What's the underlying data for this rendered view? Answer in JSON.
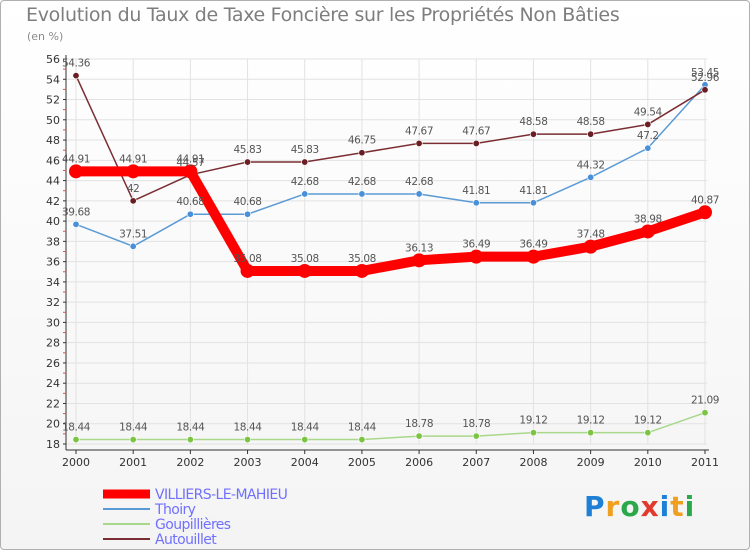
{
  "header": {
    "title": "Evolution du Taux de Taxe Foncière sur les Propriétés Non Bâties",
    "unit": "(en %)"
  },
  "logo": {
    "text": "Proxiti",
    "colors": [
      "#1e7fd6",
      "#f0a020",
      "#2aa84a",
      "#e23b2e",
      "#1e7fd6",
      "#f0a020",
      "#2aa84a"
    ]
  },
  "chart_data": {
    "type": "line",
    "title": "Evolution du Taux de Taxe Foncière sur les Propriétés Non Bâties",
    "ylabel": "(en %)",
    "xlabel": "",
    "x": [
      "2000",
      "2001",
      "2002",
      "2003",
      "2004",
      "2005",
      "2006",
      "2007",
      "2008",
      "2009",
      "2010",
      "2011"
    ],
    "ylim": [
      18,
      56
    ],
    "yticks": [
      18,
      20,
      22,
      24,
      26,
      28,
      30,
      32,
      34,
      36,
      38,
      40,
      42,
      44,
      46,
      48,
      50,
      52,
      54,
      56
    ],
    "grid": true,
    "legend_position": "bottom-left",
    "series": [
      {
        "name": "VILLIERS-LE-MAHIEU",
        "color": "#ff0000",
        "emphasis": true,
        "values": [
          44.91,
          44.91,
          44.91,
          35.08,
          35.08,
          35.08,
          36.13,
          36.49,
          36.49,
          37.48,
          38.98,
          40.87
        ],
        "labels": [
          "44.91",
          "44.91",
          "44.91",
          "35.08",
          "35.08",
          "35.08",
          "36.13",
          "36.49",
          "36.49",
          "37.48",
          "38.98",
          "40.87"
        ]
      },
      {
        "name": "Thoiry",
        "color": "#5b9bd5",
        "marker": "#4a90d9",
        "values": [
          39.68,
          37.51,
          40.68,
          40.68,
          42.68,
          42.68,
          42.68,
          41.81,
          41.81,
          44.32,
          47.2,
          53.45
        ],
        "labels": [
          "39.68",
          "37.51",
          "40.68",
          "40.68",
          "42.68",
          "42.68",
          "42.68",
          "41.81",
          "41.81",
          "44.32",
          "47.2",
          "53.45"
        ]
      },
      {
        "name": "Goupillières",
        "color": "#a8d88a",
        "marker": "#7cc444",
        "values": [
          18.44,
          18.44,
          18.44,
          18.44,
          18.44,
          18.44,
          18.78,
          18.78,
          19.12,
          19.12,
          19.12,
          21.09
        ],
        "labels": [
          "18.44",
          "18.44",
          "18.44",
          "18.44",
          "18.44",
          "18.44",
          "18.78",
          "18.78",
          "19.12",
          "19.12",
          "19.12",
          "21.09"
        ]
      },
      {
        "name": "Autouillet",
        "color": "#7a2e33",
        "marker": "#6a1e24",
        "values": [
          54.36,
          42,
          44.57,
          45.83,
          45.83,
          46.75,
          47.67,
          47.67,
          48.58,
          48.58,
          49.54,
          52.96
        ],
        "labels": [
          "54.36",
          "42",
          "44.57",
          "45.83",
          "45.83",
          "46.75",
          "47.67",
          "47.67",
          "48.58",
          "48.58",
          "49.54",
          "52.96"
        ]
      }
    ]
  }
}
